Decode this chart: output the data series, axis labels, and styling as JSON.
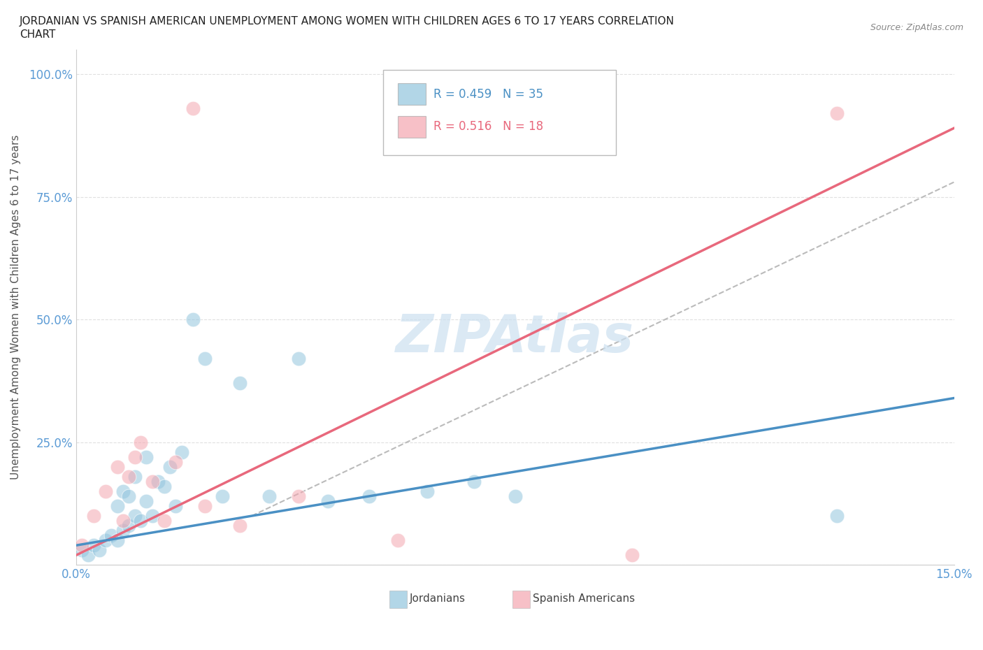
{
  "title_line1": "JORDANIAN VS SPANISH AMERICAN UNEMPLOYMENT AMONG WOMEN WITH CHILDREN AGES 6 TO 17 YEARS CORRELATION",
  "title_line2": "CHART",
  "source": "Source: ZipAtlas.com",
  "ylabel": "Unemployment Among Women with Children Ages 6 to 17 years",
  "xmin": 0.0,
  "xmax": 0.15,
  "ymin": 0.0,
  "ymax": 1.05,
  "r_jordanian": 0.459,
  "n_jordanian": 35,
  "r_spanish": 0.516,
  "n_spanish": 18,
  "color_jordanian": "#92c5de",
  "color_spanish": "#f4a6b0",
  "color_jordanian_line": "#4a90c4",
  "color_spanish_line": "#e8687c",
  "color_dashed_line": "#bbbbbb",
  "background_color": "#ffffff",
  "grid_color": "#e0e0e0",
  "title_color": "#222222",
  "axis_tick_color": "#5b9bd5",
  "watermark_color": "#cce0f0",
  "jordanian_x": [
    0.001,
    0.002,
    0.003,
    0.004,
    0.005,
    0.006,
    0.007,
    0.007,
    0.008,
    0.008,
    0.009,
    0.009,
    0.01,
    0.01,
    0.011,
    0.012,
    0.012,
    0.013,
    0.014,
    0.015,
    0.016,
    0.017,
    0.018,
    0.02,
    0.022,
    0.025,
    0.028,
    0.033,
    0.038,
    0.043,
    0.05,
    0.06,
    0.068,
    0.075,
    0.13
  ],
  "jordanian_y": [
    0.03,
    0.02,
    0.04,
    0.03,
    0.05,
    0.06,
    0.05,
    0.12,
    0.07,
    0.15,
    0.08,
    0.14,
    0.1,
    0.18,
    0.09,
    0.13,
    0.22,
    0.1,
    0.17,
    0.16,
    0.2,
    0.12,
    0.23,
    0.5,
    0.42,
    0.14,
    0.37,
    0.14,
    0.42,
    0.13,
    0.14,
    0.15,
    0.17,
    0.14,
    0.1
  ],
  "spanish_x": [
    0.001,
    0.003,
    0.005,
    0.007,
    0.008,
    0.009,
    0.01,
    0.011,
    0.013,
    0.015,
    0.017,
    0.02,
    0.022,
    0.028,
    0.038,
    0.055,
    0.095,
    0.13
  ],
  "spanish_y": [
    0.04,
    0.1,
    0.15,
    0.2,
    0.09,
    0.18,
    0.22,
    0.25,
    0.17,
    0.09,
    0.21,
    0.93,
    0.12,
    0.08,
    0.14,
    0.05,
    0.02,
    0.92
  ]
}
